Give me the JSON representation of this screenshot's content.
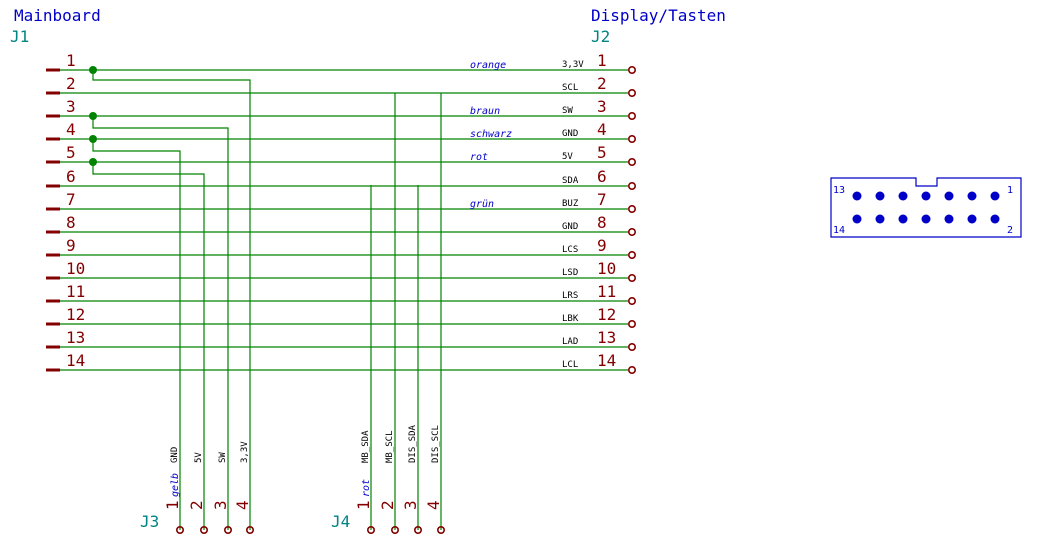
{
  "j1": {
    "title": "Mainboard",
    "ref": "J1",
    "pins": [
      "1",
      "2",
      "3",
      "4",
      "5",
      "6",
      "7",
      "8",
      "9",
      "10",
      "11",
      "12",
      "13",
      "14"
    ]
  },
  "j2": {
    "title": "Display/Tasten",
    "ref": "J2",
    "pins": [
      "1",
      "2",
      "3",
      "4",
      "5",
      "6",
      "7",
      "8",
      "9",
      "10",
      "11",
      "12",
      "13",
      "14"
    ],
    "signals": [
      "3,3V",
      "SCL",
      "SW",
      "GND",
      "5V",
      "SDA",
      "BUZ",
      "GND",
      "LCS",
      "LSD",
      "LRS",
      "LBK",
      "LAD",
      "LCL"
    ]
  },
  "wire_labels": {
    "orange": "orange",
    "braun": "braun",
    "schwarz": "schwarz",
    "rot": "rot",
    "gruen": "grün"
  },
  "j3": {
    "ref": "J3",
    "pins": [
      "1",
      "2",
      "3",
      "4"
    ],
    "signals": [
      "GND",
      "5V",
      "SW",
      "3,3V"
    ],
    "color_label": "gelb"
  },
  "j4": {
    "ref": "J4",
    "pins": [
      "1",
      "2",
      "3",
      "4"
    ],
    "signals": [
      "MB_SDA",
      "MB_SCL",
      "DIS_SDA",
      "DIS_SCL"
    ],
    "color_label": "rot"
  },
  "header": {
    "top_left": "13",
    "top_right": "1",
    "bottom_left": "14",
    "bottom_right": "2"
  },
  "colors": {
    "wire": "#008400",
    "pin": "#840000",
    "label": "#0000c8",
    "ref": "#008484",
    "header": "#0000c8"
  }
}
